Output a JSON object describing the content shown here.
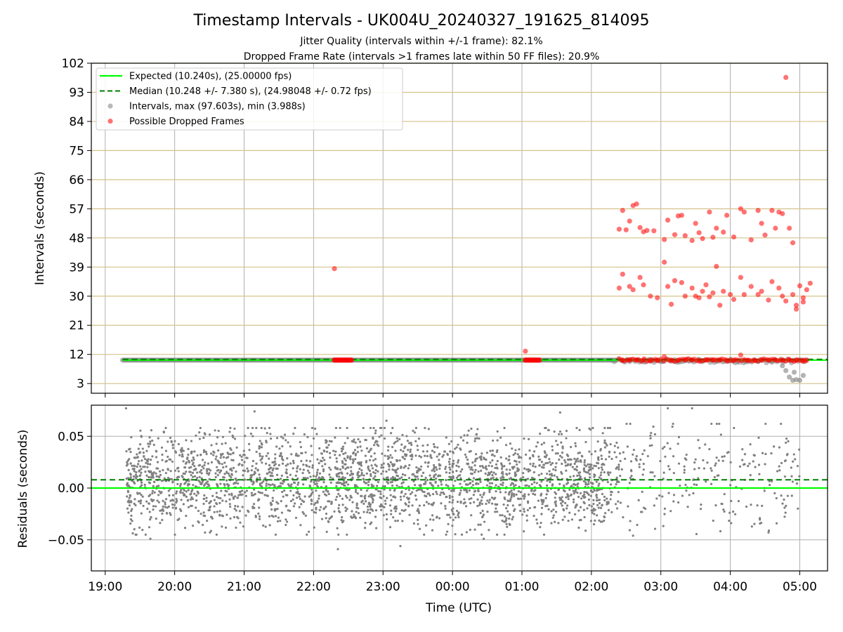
{
  "chart_data": [
    {
      "type": "scatter",
      "title": "Timestamp Intervals - UK004U_20240327_191625_814095",
      "subtitle_lines": [
        "Jitter Quality (intervals within +/-1 frame): 82.1%",
        "Dropped Frame Rate (intervals >1 frames late within 50 FF files): 20.9%"
      ],
      "ylabel": "Intervals (seconds)",
      "ylim": [
        0,
        102
      ],
      "yticks": [
        3,
        12,
        21,
        30,
        39,
        48,
        57,
        66,
        75,
        84,
        93,
        102
      ],
      "xlim_hours": [
        -0.2,
        10.4
      ],
      "x_tick_hours": [
        0,
        1,
        2,
        3,
        4,
        5,
        6,
        7,
        8,
        9,
        10
      ],
      "grid": true,
      "legend_position": "upper-left",
      "legend": [
        {
          "label": "Expected (10.240s), (25.00000 fps)",
          "style": "line",
          "color": "#00ff00"
        },
        {
          "label": "Median (10.248 +/- 7.380 s), (24.98048 +/- 0.72 fps)",
          "style": "dashed",
          "color": "#007f00"
        },
        {
          "label": "Intervals, max (97.603s), min (3.988s)",
          "style": "marker",
          "color": "#808080"
        },
        {
          "label": "Possible Dropped Frames",
          "style": "marker",
          "color": "#ff0000"
        }
      ],
      "expected_value": 10.24,
      "median_value": 10.248,
      "series": [
        {
          "name": "Intervals, max (97.603s), min (3.988s)",
          "color": "#808080",
          "note_baseline": {
            "x_range": [
              0.25,
              7.35
            ],
            "y": 10.24
          },
          "points": [
            [
              7.45,
              10.0
            ],
            [
              7.55,
              9.8
            ],
            [
              7.7,
              10.1
            ],
            [
              7.85,
              9.9
            ],
            [
              8.0,
              10.0
            ],
            [
              8.2,
              9.9
            ],
            [
              8.4,
              10.0
            ],
            [
              8.6,
              10.1
            ],
            [
              8.8,
              9.9
            ],
            [
              9.0,
              10.0
            ],
            [
              9.2,
              10.1
            ],
            [
              9.4,
              9.8
            ],
            [
              9.6,
              9.6
            ],
            [
              9.75,
              8.5
            ],
            [
              9.8,
              7.0
            ],
            [
              9.85,
              5.0
            ],
            [
              9.9,
              4.0
            ],
            [
              9.95,
              4.2
            ],
            [
              10.0,
              4.0
            ],
            [
              10.05,
              5.5
            ],
            [
              9.92,
              6.5
            ]
          ]
        },
        {
          "name": "Possible Dropped Frames",
          "color": "#ff0000",
          "points": [
            [
              3.3,
              38.5
            ],
            [
              3.3,
              10.24
            ],
            [
              3.35,
              10.24
            ],
            [
              3.4,
              10.24
            ],
            [
              3.45,
              10.24
            ],
            [
              3.5,
              10.24
            ],
            [
              3.55,
              10.24
            ],
            [
              6.05,
              13.0
            ],
            [
              6.05,
              10.24
            ],
            [
              6.1,
              10.24
            ],
            [
              6.15,
              10.24
            ],
            [
              6.2,
              10.24
            ],
            [
              6.25,
              10.24
            ],
            [
              7.4,
              50.7
            ],
            [
              7.45,
              56.5
            ],
            [
              7.5,
              50.5
            ],
            [
              7.55,
              53.2
            ],
            [
              7.6,
              58.0
            ],
            [
              7.65,
              58.5
            ],
            [
              7.7,
              51.2
            ],
            [
              7.75,
              49.9
            ],
            [
              7.8,
              50.3
            ],
            [
              7.9,
              50.2
            ],
            [
              8.05,
              47.5
            ],
            [
              8.1,
              53.5
            ],
            [
              8.2,
              49.0
            ],
            [
              8.25,
              54.8
            ],
            [
              8.3,
              55.0
            ],
            [
              8.35,
              48.7
            ],
            [
              8.45,
              47.2
            ],
            [
              8.5,
              52.5
            ],
            [
              8.55,
              49.6
            ],
            [
              8.6,
              47.8
            ],
            [
              8.7,
              56.0
            ],
            [
              8.75,
              48.2
            ],
            [
              8.8,
              51.0
            ],
            [
              8.9,
              49.8
            ],
            [
              8.95,
              55.0
            ],
            [
              9.05,
              48.3
            ],
            [
              9.15,
              57.0
            ],
            [
              9.2,
              56.0
            ],
            [
              9.3,
              47.4
            ],
            [
              9.4,
              56.5
            ],
            [
              9.45,
              52.5
            ],
            [
              9.5,
              48.9
            ],
            [
              9.6,
              56.5
            ],
            [
              9.65,
              51.0
            ],
            [
              9.7,
              56.0
            ],
            [
              9.75,
              55.5
            ],
            [
              9.85,
              51.0
            ],
            [
              9.9,
              46.5
            ],
            [
              7.4,
              32.5
            ],
            [
              7.45,
              36.8
            ],
            [
              7.55,
              33.0
            ],
            [
              7.6,
              32.0
            ],
            [
              7.7,
              35.8
            ],
            [
              7.75,
              33.5
            ],
            [
              7.85,
              30.0
            ],
            [
              7.95,
              29.5
            ],
            [
              8.05,
              40.5
            ],
            [
              8.1,
              33.0
            ],
            [
              8.15,
              27.5
            ],
            [
              8.2,
              34.8
            ],
            [
              8.3,
              34.2
            ],
            [
              8.35,
              30.0
            ],
            [
              8.45,
              32.5
            ],
            [
              8.5,
              30.0
            ],
            [
              8.55,
              29.5
            ],
            [
              8.6,
              31.5
            ],
            [
              8.65,
              33.5
            ],
            [
              8.7,
              29.8
            ],
            [
              8.75,
              31.0
            ],
            [
              8.8,
              39.2
            ],
            [
              8.85,
              27.2
            ],
            [
              8.9,
              31.5
            ],
            [
              9.0,
              30.5
            ],
            [
              9.05,
              29.0
            ],
            [
              9.15,
              35.8
            ],
            [
              9.2,
              30.5
            ],
            [
              9.3,
              33.0
            ],
            [
              9.4,
              30.5
            ],
            [
              9.45,
              31.5
            ],
            [
              9.55,
              28.8
            ],
            [
              9.6,
              34.5
            ],
            [
              9.7,
              32.5
            ],
            [
              9.75,
              30.0
            ],
            [
              9.8,
              28.5
            ],
            [
              9.9,
              30.5
            ],
            [
              9.95,
              27.2
            ],
            [
              10.0,
              33.2
            ],
            [
              10.05,
              29.5
            ],
            [
              10.1,
              32.0
            ],
            [
              10.15,
              34.0
            ],
            [
              9.8,
              97.6
            ],
            [
              9.95,
              26.0
            ],
            [
              10.05,
              28.2
            ],
            [
              7.45,
              10.24
            ],
            [
              7.55,
              10.24
            ],
            [
              7.65,
              10.24
            ],
            [
              7.75,
              10.24
            ],
            [
              7.85,
              10.24
            ],
            [
              7.95,
              10.24
            ],
            [
              8.05,
              11.3
            ],
            [
              8.15,
              10.24
            ],
            [
              8.25,
              10.24
            ],
            [
              8.35,
              10.24
            ],
            [
              8.45,
              10.24
            ],
            [
              8.55,
              10.24
            ],
            [
              8.65,
              10.24
            ],
            [
              8.75,
              10.24
            ],
            [
              8.85,
              10.24
            ],
            [
              8.95,
              10.24
            ],
            [
              9.05,
              10.24
            ],
            [
              9.15,
              11.8
            ],
            [
              9.25,
              10.24
            ],
            [
              9.35,
              10.24
            ],
            [
              9.45,
              10.24
            ],
            [
              9.55,
              10.24
            ],
            [
              9.65,
              10.24
            ],
            [
              9.75,
              10.24
            ],
            [
              9.85,
              10.24
            ],
            [
              9.95,
              10.24
            ],
            [
              10.05,
              10.24
            ],
            [
              10.1,
              10.24
            ]
          ]
        }
      ]
    },
    {
      "type": "scatter",
      "ylabel": "Residuals (seconds)",
      "xlabel": "Time (UTC)",
      "ylim": [
        -0.08,
        0.08
      ],
      "yticks": [
        0.05,
        0.0,
        -0.05
      ],
      "ytick_labels": [
        "0.05",
        "0.00",
        "−0.05"
      ],
      "x_tick_labels": [
        "19:00",
        "20:00",
        "21:00",
        "22:00",
        "23:00",
        "00:00",
        "01:00",
        "02:00",
        "03:00",
        "04:00",
        "05:00"
      ],
      "xlim_hours": [
        -0.2,
        10.4
      ],
      "grid": true,
      "zero_line": 0.0,
      "median_line": 0.008,
      "series": [
        {
          "name": "Residuals",
          "color": "#808080",
          "dense_range_hours": [
            0.3,
            7.3
          ],
          "dense_spread_seconds": 0.025,
          "sparse_range_hours": [
            7.3,
            10.0
          ],
          "outliers": [
            [
              0.3,
              0.077
            ],
            [
              0.65,
              -0.049
            ],
            [
              2.15,
              0.074
            ],
            [
              3.35,
              -0.059
            ],
            [
              4.25,
              -0.056
            ],
            [
              4.05,
              0.065
            ],
            [
              5.45,
              -0.049
            ],
            [
              6.55,
              0.073
            ],
            [
              7.6,
              -0.046
            ],
            [
              8.1,
              0.077
            ],
            [
              8.45,
              0.077
            ]
          ]
        }
      ]
    }
  ],
  "colors": {
    "gridline": "#b0b0b0",
    "h_gridline": "#d4c38a",
    "expected": "#00ff00",
    "median": "#007f00",
    "intervals": "#808080",
    "dropped": "#ff0000"
  }
}
